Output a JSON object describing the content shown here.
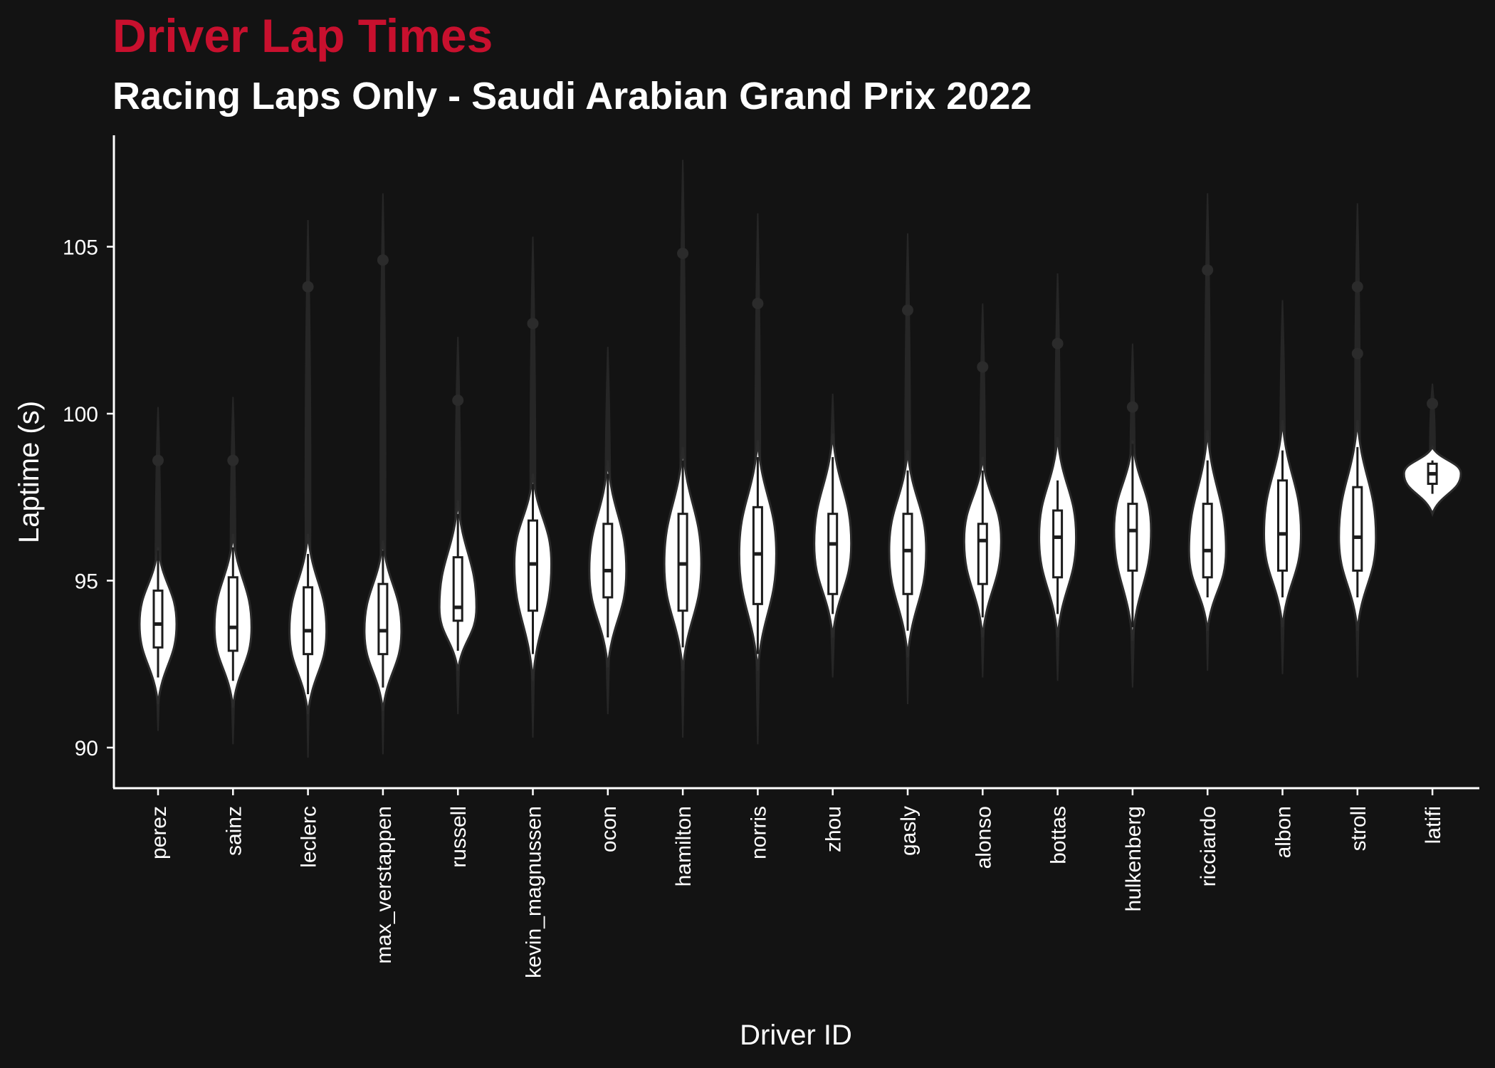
{
  "chart_data": {
    "type": "violin",
    "title": "Driver Lap Times",
    "subtitle": "Racing Laps Only - Saudi Arabian Grand Prix 2022",
    "xlabel": "Driver ID",
    "ylabel": "Laptime (s)",
    "ylim": [
      88.8,
      108.2
    ],
    "yticks": [
      90,
      95,
      100,
      105
    ],
    "grid": false,
    "legend": "none",
    "colors": {
      "background": "#131313",
      "violin_fill": "#ffffff",
      "outline": "#2b2b2b",
      "title": "#c8102e",
      "text": "#ffffff"
    },
    "categories": [
      "perez",
      "sainz",
      "leclerc",
      "max_verstappen",
      "russell",
      "kevin_magnussen",
      "ocon",
      "hamilton",
      "norris",
      "zhou",
      "gasly",
      "alonso",
      "bottas",
      "hulkenberg",
      "ricciardo",
      "albon",
      "stroll",
      "latifi"
    ],
    "series": [
      {
        "driver": "perez",
        "vmin": 91.3,
        "vmax": 96.0,
        "q1": 93.0,
        "median": 93.7,
        "q3": 94.7,
        "wlo": 92.1,
        "whi": 95.9,
        "outliers": [
          98.6
        ],
        "ghost_min": 90.5,
        "ghost_max": 100.2
      },
      {
        "driver": "sainz",
        "vmin": 91.2,
        "vmax": 96.4,
        "q1": 92.9,
        "median": 93.6,
        "q3": 95.1,
        "wlo": 92.0,
        "whi": 96.0,
        "outliers": [
          98.6
        ],
        "ghost_min": 90.1,
        "ghost_max": 100.5
      },
      {
        "driver": "leclerc",
        "vmin": 91.0,
        "vmax": 96.4,
        "q1": 92.8,
        "median": 93.5,
        "q3": 94.8,
        "wlo": 91.6,
        "whi": 95.8,
        "outliers": [
          103.8
        ],
        "ghost_min": 89.7,
        "ghost_max": 105.8
      },
      {
        "driver": "max_verstappen",
        "vmin": 91.1,
        "vmax": 96.2,
        "q1": 92.8,
        "median": 93.5,
        "q3": 94.9,
        "wlo": 91.8,
        "whi": 95.9,
        "outliers": [
          104.6
        ],
        "ghost_min": 89.8,
        "ghost_max": 106.6
      },
      {
        "driver": "russell",
        "vmin": 92.3,
        "vmax": 97.4,
        "q1": 93.8,
        "median": 94.2,
        "q3": 95.7,
        "wlo": 92.9,
        "whi": 97.0,
        "outliers": [
          100.4
        ],
        "ghost_min": 91.0,
        "ghost_max": 102.3
      },
      {
        "driver": "kevin_magnussen",
        "vmin": 92.0,
        "vmax": 98.2,
        "q1": 94.1,
        "median": 95.5,
        "q3": 96.8,
        "wlo": 92.8,
        "whi": 97.9,
        "outliers": [
          102.7
        ],
        "ghost_min": 90.3,
        "ghost_max": 105.3
      },
      {
        "driver": "ocon",
        "vmin": 92.4,
        "vmax": 98.6,
        "q1": 94.5,
        "median": 95.3,
        "q3": 96.7,
        "wlo": 93.3,
        "whi": 98.2,
        "outliers": [],
        "ghost_min": 91.0,
        "ghost_max": 102.0
      },
      {
        "driver": "hamilton",
        "vmin": 92.3,
        "vmax": 99.0,
        "q1": 94.1,
        "median": 95.5,
        "q3": 97.0,
        "wlo": 93.0,
        "whi": 98.6,
        "outliers": [
          104.8
        ],
        "ghost_min": 90.3,
        "ghost_max": 107.6
      },
      {
        "driver": "norris",
        "vmin": 92.3,
        "vmax": 99.2,
        "q1": 94.3,
        "median": 95.8,
        "q3": 97.2,
        "wlo": 92.8,
        "whi": 98.7,
        "outliers": [
          103.3
        ],
        "ghost_min": 90.1,
        "ghost_max": 106.0
      },
      {
        "driver": "zhou",
        "vmin": 93.3,
        "vmax": 99.4,
        "q1": 94.6,
        "median": 96.1,
        "q3": 97.0,
        "wlo": 94.0,
        "whi": 98.7,
        "outliers": [],
        "ghost_min": 92.1,
        "ghost_max": 100.6
      },
      {
        "driver": "gasly",
        "vmin": 92.7,
        "vmax": 98.9,
        "q1": 94.6,
        "median": 95.9,
        "q3": 97.0,
        "wlo": 93.5,
        "whi": 98.3,
        "outliers": [
          103.1
        ],
        "ghost_min": 91.3,
        "ghost_max": 105.4
      },
      {
        "driver": "alonso",
        "vmin": 93.3,
        "vmax": 98.7,
        "q1": 94.9,
        "median": 96.2,
        "q3": 96.7,
        "wlo": 93.9,
        "whi": 98.3,
        "outliers": [
          101.4
        ],
        "ghost_min": 92.1,
        "ghost_max": 103.3
      },
      {
        "driver": "bottas",
        "vmin": 93.3,
        "vmax": 99.3,
        "q1": 95.1,
        "median": 96.3,
        "q3": 97.1,
        "wlo": 94.0,
        "whi": 98.0,
        "outliers": [
          102.1
        ],
        "ghost_min": 92.0,
        "ghost_max": 104.2
      },
      {
        "driver": "hulkenberg",
        "vmin": 93.2,
        "vmax": 99.2,
        "q1": 95.3,
        "median": 96.5,
        "q3": 97.3,
        "wlo": 93.6,
        "whi": 99.1,
        "outliers": [
          100.2
        ],
        "ghost_min": 91.8,
        "ghost_max": 102.1
      },
      {
        "driver": "ricciardo",
        "vmin": 93.5,
        "vmax": 99.5,
        "q1": 95.1,
        "median": 95.9,
        "q3": 97.3,
        "wlo": 94.5,
        "whi": 98.6,
        "outliers": [
          104.3
        ],
        "ghost_min": 92.3,
        "ghost_max": 106.6
      },
      {
        "driver": "albon",
        "vmin": 93.6,
        "vmax": 99.8,
        "q1": 95.3,
        "median": 96.4,
        "q3": 98.0,
        "wlo": 94.5,
        "whi": 98.9,
        "outliers": [],
        "ghost_min": 92.2,
        "ghost_max": 103.4
      },
      {
        "driver": "stroll",
        "vmin": 93.5,
        "vmax": 99.8,
        "q1": 95.3,
        "median": 96.3,
        "q3": 97.8,
        "wlo": 94.5,
        "whi": 99.0,
        "outliers": [
          101.8,
          103.8
        ],
        "ghost_min": 92.1,
        "ghost_max": 106.3
      },
      {
        "driver": "latifi",
        "vmin": 97.0,
        "vmax": 99.0,
        "q1": 97.9,
        "median": 98.2,
        "q3": 98.5,
        "wlo": 97.6,
        "whi": 98.6,
        "outliers": [
          100.3
        ],
        "ghost_min": 97.1,
        "ghost_max": 100.9
      }
    ]
  }
}
